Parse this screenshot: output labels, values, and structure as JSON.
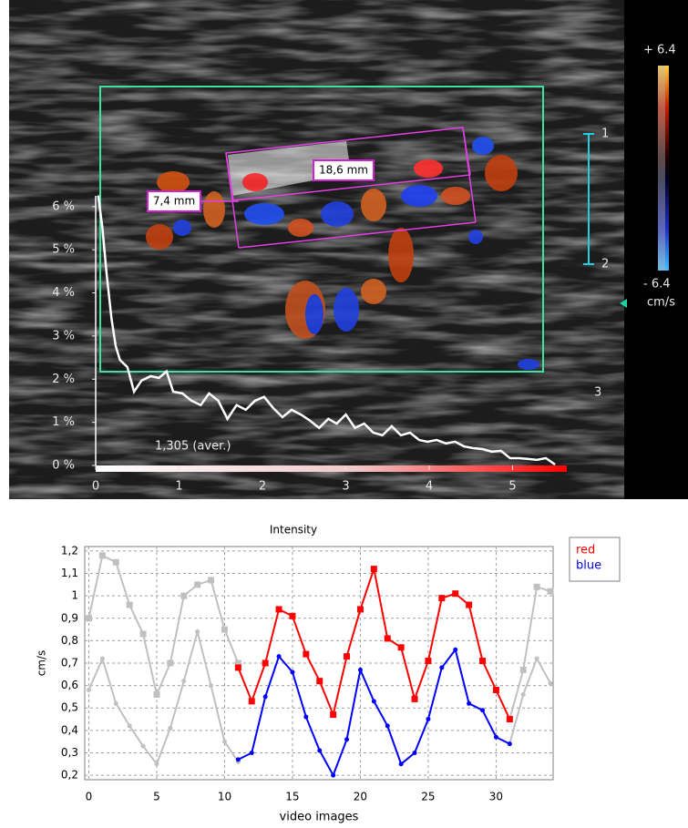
{
  "ultrasound": {
    "scale_top": "+ 6.4",
    "scale_bottom": "- 6.4",
    "scale_unit": "cm/s",
    "depth_labels": [
      "1",
      "2",
      "3"
    ],
    "measurements": [
      "7,4 mm",
      "18,6 mm"
    ]
  },
  "chart_data": [
    {
      "type": "line",
      "annotation": "1,305 (aver.)",
      "color": "#ffffff",
      "x": [
        0.03,
        0.08,
        0.13,
        0.19,
        0.24,
        0.29,
        0.38,
        0.46,
        0.55,
        0.66,
        0.76,
        0.85,
        0.93,
        1.04,
        1.15,
        1.26,
        1.36,
        1.47,
        1.58,
        1.69,
        1.8,
        1.91,
        2.02,
        2.13,
        2.24,
        2.35,
        2.46,
        2.57,
        2.68,
        2.79,
        2.89,
        3.0,
        3.11,
        3.22,
        3.33,
        3.44,
        3.55,
        3.66,
        3.77,
        3.88,
        3.98,
        4.09,
        4.2,
        4.31,
        4.42,
        4.53,
        4.64,
        4.75,
        4.86,
        4.97,
        5.08,
        5.19,
        5.29,
        5.4,
        5.51
      ],
      "values": [
        6.26,
        5.52,
        4.46,
        3.4,
        2.77,
        2.45,
        2.28,
        1.71,
        1.97,
        2.07,
        2.03,
        2.18,
        1.71,
        1.67,
        1.5,
        1.4,
        1.67,
        1.5,
        1.08,
        1.4,
        1.29,
        1.5,
        1.59,
        1.33,
        1.12,
        1.29,
        1.18,
        1.04,
        0.87,
        1.08,
        0.97,
        1.18,
        0.87,
        0.97,
        0.76,
        0.7,
        0.91,
        0.7,
        0.76,
        0.59,
        0.55,
        0.59,
        0.51,
        0.55,
        0.44,
        0.4,
        0.38,
        0.32,
        0.34,
        0.17,
        0.17,
        0.15,
        0.13,
        0.17,
        0.02
      ],
      "xlim": [
        0,
        5.65
      ],
      "ylim": [
        0,
        6.25
      ],
      "xticks": [
        0,
        1,
        2,
        3,
        4,
        5
      ],
      "yticks": [
        {
          "value": 0,
          "label": "0 %"
        },
        {
          "value": 1,
          "label": "1 %"
        },
        {
          "value": 2,
          "label": "2 %"
        },
        {
          "value": 3,
          "label": "3 %"
        },
        {
          "value": 4,
          "label": "4 %"
        },
        {
          "value": 5,
          "label": "5 %"
        },
        {
          "value": 6,
          "label": "6 %"
        }
      ]
    },
    {
      "type": "line",
      "title": "Intensity",
      "x_label": "video images",
      "y_label": "cm/s",
      "grid": true,
      "x": [
        0,
        1,
        2,
        3,
        4,
        5,
        6,
        7,
        8,
        9,
        10,
        11,
        12,
        13,
        14,
        15,
        16,
        17,
        18,
        19,
        20,
        21,
        22,
        23,
        24,
        25,
        26,
        27,
        28,
        29,
        30,
        31,
        32,
        33,
        34
      ],
      "series": [
        {
          "name": "red",
          "color": "#ff0000",
          "marker": "square",
          "values": [
            null,
            null,
            null,
            null,
            null,
            null,
            null,
            null,
            null,
            null,
            null,
            0.68,
            0.53,
            0.7,
            0.94,
            0.91,
            0.74,
            0.62,
            0.47,
            0.73,
            0.94,
            1.12,
            0.81,
            0.77,
            0.54,
            0.71,
            0.99,
            1.01,
            0.96,
            0.71,
            0.58,
            0.45,
            null,
            null,
            null
          ]
        },
        {
          "name": "blue",
          "color": "#0000ff",
          "marker": "dot",
          "values": [
            null,
            null,
            null,
            null,
            null,
            null,
            null,
            null,
            null,
            null,
            null,
            0.27,
            0.3,
            0.55,
            0.73,
            0.66,
            0.46,
            0.31,
            0.2,
            0.36,
            0.67,
            0.53,
            0.42,
            0.25,
            0.3,
            0.45,
            0.68,
            0.76,
            0.52,
            0.49,
            0.37,
            0.34,
            null,
            null,
            null
          ]
        },
        {
          "color": "#c0c0c0",
          "marker": "square",
          "values": [
            0.9,
            1.18,
            1.15,
            0.96,
            0.83,
            0.56,
            0.7,
            1.0,
            1.05,
            1.07,
            0.85,
            0.7,
            null,
            null,
            null,
            null,
            null,
            null,
            null,
            null,
            null,
            null,
            null,
            null,
            null,
            null,
            null,
            null,
            null,
            null,
            null,
            0.45,
            0.67,
            1.04,
            1.02
          ]
        },
        {
          "color": "#c0c0c0",
          "marker": "dot",
          "values": [
            0.58,
            0.72,
            0.52,
            0.42,
            0.33,
            0.25,
            0.41,
            0.62,
            0.84,
            0.6,
            0.35,
            0.26,
            null,
            null,
            null,
            null,
            null,
            null,
            null,
            null,
            null,
            null,
            null,
            null,
            null,
            null,
            null,
            null,
            null,
            null,
            null,
            0.34,
            0.56,
            0.72,
            0.61
          ]
        }
      ],
      "xlim": [
        -0.3,
        34.2
      ],
      "ylim": [
        0.18,
        1.22
      ],
      "xticks": [
        0,
        5,
        10,
        15,
        20,
        25,
        30
      ],
      "yticks": [
        {
          "value": 0.2,
          "label": "0,2"
        },
        {
          "value": 0.3,
          "label": "0,3"
        },
        {
          "value": 0.4,
          "label": "0,4"
        },
        {
          "value": 0.5,
          "label": "0,5"
        },
        {
          "value": 0.6,
          "label": "0,6"
        },
        {
          "value": 0.7,
          "label": "0,7"
        },
        {
          "value": 0.8,
          "label": "0,8"
        },
        {
          "value": 0.9,
          "label": "0,9"
        },
        1,
        {
          "value": 1.1,
          "label": "1,1"
        },
        {
          "value": 1.2,
          "label": "1,2"
        }
      ]
    }
  ]
}
